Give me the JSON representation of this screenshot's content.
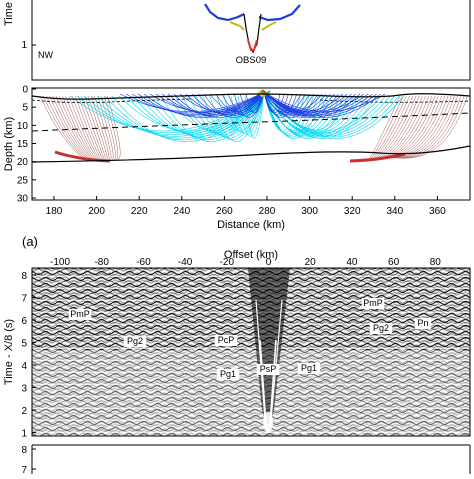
{
  "top_panel": {
    "y_axis_label": "Time",
    "y_tick_label": "1",
    "direction_label": "NW",
    "station_label": "OBS09"
  },
  "model_panel": {
    "y_axis_label": "Depth (km)",
    "x_axis_label": "Distance (km)",
    "panel_label": "(a)",
    "y_ticks": [
      "0",
      "5",
      "10",
      "15",
      "20",
      "25",
      "30"
    ],
    "x_ticks": [
      "180",
      "200",
      "220",
      "240",
      "260",
      "280",
      "300",
      "320",
      "340",
      "360"
    ]
  },
  "section_panel": {
    "top_axis_label": "Offset (km)",
    "y_axis_label": "Time - X/8 (s)",
    "x_ticks": [
      "-100",
      "-80",
      "-60",
      "-40",
      "-20",
      "0",
      "20",
      "40",
      "60",
      "80"
    ],
    "y_ticks": [
      "8",
      "7",
      "6",
      "5",
      "4",
      "3",
      "2",
      "1"
    ],
    "phase_labels": [
      "PmP",
      "Pg2",
      "PcP",
      "Pg1",
      "PsP",
      "Pg1",
      "PmP",
      "Pg2",
      "Pn"
    ]
  },
  "bottom_panel": {
    "y_ticks": [
      "8",
      "7"
    ]
  },
  "colors": {
    "ray_light_blue": "#00d8f0",
    "ray_blue": "#1a3de0",
    "ray_brown": "#8b2a1e",
    "ray_red": "#c83030"
  }
}
